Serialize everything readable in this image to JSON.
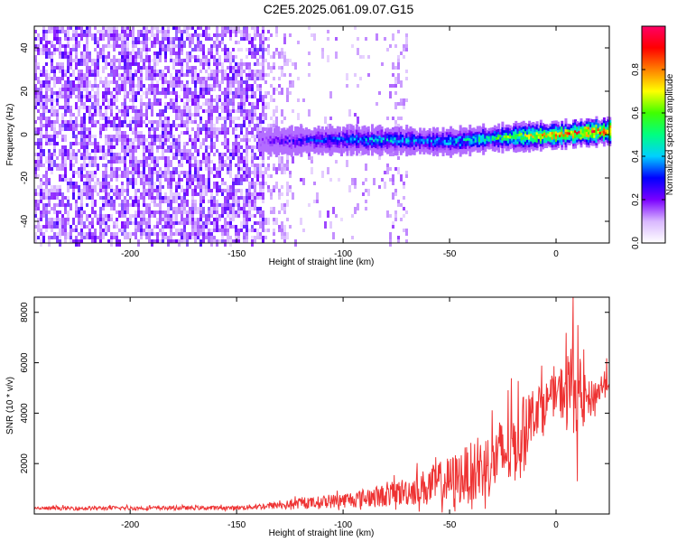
{
  "title": "C2E5.2025.061.09.07.G15",
  "chart_data": [
    {
      "type": "heatmap",
      "xlabel": "Height of straight line (km)",
      "ylabel": "Frequency (Hz)",
      "xlim": [
        -245,
        25
      ],
      "ylim": [
        -50,
        50
      ],
      "xticks": [
        -200,
        -150,
        -100,
        -50,
        0
      ],
      "yticks": [
        -40,
        -20,
        0,
        20,
        40
      ],
      "colorbar": {
        "label": "Normalized spectral amplitude",
        "range": [
          0,
          1
        ],
        "ticks": [
          0.0,
          0.2,
          0.4,
          0.6,
          0.8
        ],
        "colors": [
          "#ffffff",
          "#d9b8ff",
          "#7a00ff",
          "#0000ff",
          "#00d0ff",
          "#00ff80",
          "#40ff00",
          "#ffff00",
          "#ff8000",
          "#ff0000",
          "#ff0066"
        ]
      },
      "ridge": {
        "x_start": -140,
        "x_end": 25,
        "freq_center": [
          {
            "x": -140,
            "f": -3
          },
          {
            "x": -100,
            "f": -2
          },
          {
            "x": -50,
            "f": -3
          },
          {
            "x": -25,
            "f": -1
          },
          {
            "x": 0,
            "f": 0
          },
          {
            "x": 10,
            "f": 1
          },
          {
            "x": 25,
            "f": 2
          }
        ],
        "amplitude": [
          {
            "x": -140,
            "a": 0.2
          },
          {
            "x": -110,
            "a": 0.35
          },
          {
            "x": -80,
            "a": 0.45
          },
          {
            "x": -60,
            "a": 0.4
          },
          {
            "x": -40,
            "a": 0.5
          },
          {
            "x": -20,
            "a": 0.65
          },
          {
            "x": -5,
            "a": 0.85
          },
          {
            "x": 10,
            "a": 0.95
          },
          {
            "x": 25,
            "a": 0.97
          }
        ]
      },
      "noise_regions": [
        {
          "x_from": -245,
          "x_to": -138,
          "density": 0.8
        },
        {
          "x_from": -138,
          "x_to": -125,
          "density": 0.4
        },
        {
          "x_from": -125,
          "x_to": -70,
          "density": 0.08
        },
        {
          "x_from": -79,
          "x_to": -70,
          "density": 0.3
        }
      ]
    },
    {
      "type": "line",
      "xlabel": "Height of straight line (km)",
      "ylabel": "SNR (10 * v/v)",
      "xlim": [
        -245,
        25
      ],
      "ylim": [
        0,
        8600
      ],
      "xticks": [
        -200,
        -150,
        -100,
        -50,
        0
      ],
      "yticks": [
        2000,
        4000,
        6000,
        8000
      ],
      "color": "#ee3333",
      "envelope": [
        {
          "x": -245,
          "base": 200,
          "spread": 150
        },
        {
          "x": -150,
          "base": 220,
          "spread": 160
        },
        {
          "x": -130,
          "base": 300,
          "spread": 300
        },
        {
          "x": -100,
          "base": 450,
          "spread": 600
        },
        {
          "x": -80,
          "base": 600,
          "spread": 900
        },
        {
          "x": -65,
          "base": 800,
          "spread": 1300
        },
        {
          "x": -50,
          "base": 1000,
          "spread": 2000
        },
        {
          "x": -35,
          "base": 1400,
          "spread": 2600
        },
        {
          "x": -20,
          "base": 2200,
          "spread": 3200
        },
        {
          "x": -10,
          "base": 3800,
          "spread": 2000
        },
        {
          "x": 0,
          "base": 4500,
          "spread": 1500
        },
        {
          "x": 8,
          "base": 4500,
          "spread": 3800
        },
        {
          "x": 15,
          "base": 4200,
          "spread": 1600
        },
        {
          "x": 25,
          "base": 5200,
          "spread": 1000
        }
      ],
      "peak": {
        "x": 8,
        "y": 8600
      },
      "dip": {
        "x": 10,
        "y": 1300
      }
    }
  ]
}
